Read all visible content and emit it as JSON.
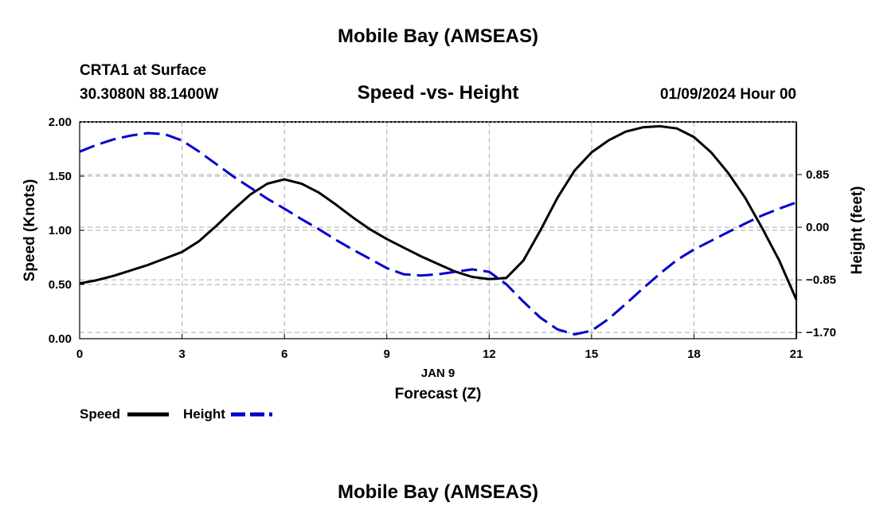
{
  "page": {
    "top_title": "Mobile Bay (AMSEAS)",
    "bottom_title": "Mobile Bay (AMSEAS)",
    "station": "CRTA1 at Surface",
    "coords": "30.3080N  88.1400W",
    "datetime": "01/09/2024 Hour 00"
  },
  "colors": {
    "speed": "#000000",
    "height": "#0000cc",
    "grid": "#bbbbbb"
  },
  "chart_data": {
    "type": "line",
    "title": "Speed -vs- Height",
    "xlabel": "Forecast (Z)",
    "xdate": "JAN 9",
    "ylabel": "Speed (Knots)",
    "y2label": "Height (feet)",
    "xlim": [
      0,
      21
    ],
    "ylim": [
      0,
      2
    ],
    "y2lim": [
      -1.8,
      1.7
    ],
    "x_ticks": [
      "0",
      "3",
      "6",
      "9",
      "12",
      "15",
      "18",
      "21"
    ],
    "y_ticks": [
      "0.00",
      "0.50",
      "1.00",
      "1.50",
      "2.00"
    ],
    "y2_ticks": [
      "−1.70",
      "−0.85",
      "0.00",
      "0.85"
    ],
    "grid": true,
    "series": [
      {
        "name": "Speed",
        "axis": "left",
        "style": "solid",
        "x": [
          0,
          0.5,
          1,
          1.5,
          2,
          2.5,
          3,
          3.5,
          4,
          4.5,
          5,
          5.5,
          6,
          6.5,
          7,
          7.5,
          8,
          8.5,
          9,
          9.5,
          10,
          10.5,
          11,
          11.5,
          12,
          12.5,
          13,
          13.5,
          14,
          14.5,
          15,
          15.5,
          16,
          16.5,
          17,
          17.5,
          18,
          18.5,
          19,
          19.5,
          20,
          20.5,
          21
        ],
        "values": [
          0.51,
          0.54,
          0.58,
          0.63,
          0.68,
          0.74,
          0.8,
          0.9,
          1.04,
          1.19,
          1.33,
          1.43,
          1.47,
          1.43,
          1.35,
          1.24,
          1.12,
          1.01,
          0.92,
          0.84,
          0.76,
          0.69,
          0.62,
          0.57,
          0.55,
          0.56,
          0.72,
          1.0,
          1.3,
          1.55,
          1.72,
          1.83,
          1.91,
          1.95,
          1.96,
          1.94,
          1.86,
          1.72,
          1.53,
          1.3,
          1.02,
          0.72,
          0.36
        ]
      },
      {
        "name": "Height",
        "axis": "right",
        "style": "dashed",
        "x": [
          0,
          0.5,
          1,
          1.5,
          2,
          2.5,
          3,
          3.5,
          4,
          4.5,
          5,
          5.5,
          6,
          6.5,
          7,
          7.5,
          8,
          8.5,
          9,
          9.5,
          10,
          10.5,
          11,
          11.5,
          12,
          12.5,
          13,
          13.5,
          14,
          14.5,
          15,
          15.5,
          16,
          16.5,
          17,
          17.5,
          18,
          18.5,
          19,
          19.5,
          20,
          20.5,
          21
        ],
        "values": [
          1.22,
          1.33,
          1.42,
          1.48,
          1.52,
          1.5,
          1.4,
          1.22,
          1.02,
          0.82,
          0.64,
          0.46,
          0.3,
          0.13,
          -0.03,
          -0.2,
          -0.36,
          -0.51,
          -0.66,
          -0.76,
          -0.78,
          -0.76,
          -0.72,
          -0.68,
          -0.72,
          -0.92,
          -1.2,
          -1.46,
          -1.65,
          -1.73,
          -1.67,
          -1.48,
          -1.24,
          -0.99,
          -0.75,
          -0.53,
          -0.36,
          -0.22,
          -0.08,
          0.06,
          0.19,
          0.3,
          0.4
        ]
      }
    ]
  },
  "legend": {
    "speed_label": "Speed",
    "height_label": "Height"
  }
}
